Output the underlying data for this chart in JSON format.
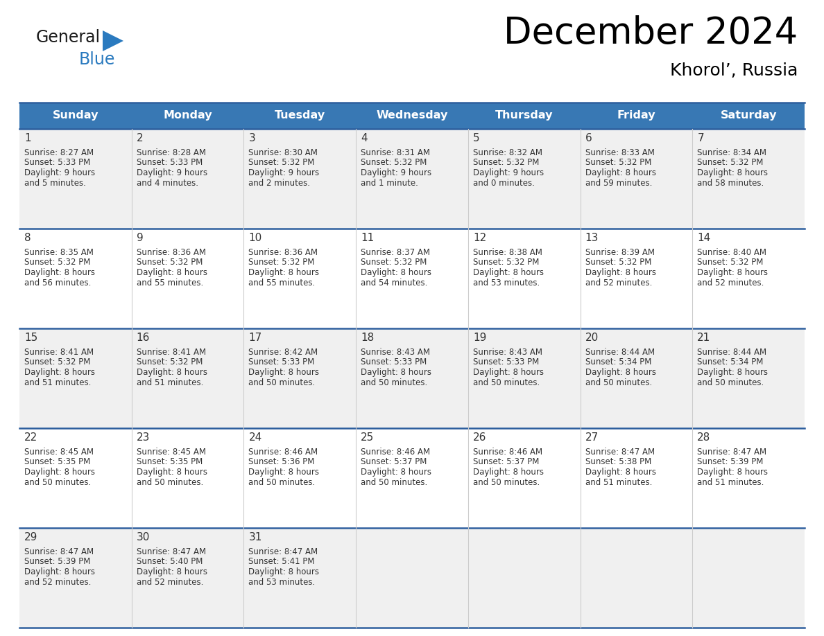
{
  "title": "December 2024",
  "subtitle": "Khorol’, Russia",
  "header_color": "#3878b4",
  "header_text_color": "#ffffff",
  "row_colors": [
    "#f0f0f0",
    "#ffffff",
    "#f0f0f0",
    "#ffffff",
    "#f0f0f0"
  ],
  "border_color": "#2e5f9e",
  "text_color": "#333333",
  "logo_general_color": "#1a1a1a",
  "logo_blue_color": "#2a7abf",
  "logo_triangle_color": "#2a7abf",
  "days_of_week": [
    "Sunday",
    "Monday",
    "Tuesday",
    "Wednesday",
    "Thursday",
    "Friday",
    "Saturday"
  ],
  "weeks": [
    [
      {
        "day": 1,
        "sunrise": "8:27 AM",
        "sunset": "5:33 PM",
        "daylight_line1": "9 hours",
        "daylight_line2": "and 5 minutes."
      },
      {
        "day": 2,
        "sunrise": "8:28 AM",
        "sunset": "5:33 PM",
        "daylight_line1": "9 hours",
        "daylight_line2": "and 4 minutes."
      },
      {
        "day": 3,
        "sunrise": "8:30 AM",
        "sunset": "5:32 PM",
        "daylight_line1": "9 hours",
        "daylight_line2": "and 2 minutes."
      },
      {
        "day": 4,
        "sunrise": "8:31 AM",
        "sunset": "5:32 PM",
        "daylight_line1": "9 hours",
        "daylight_line2": "and 1 minute."
      },
      {
        "day": 5,
        "sunrise": "8:32 AM",
        "sunset": "5:32 PM",
        "daylight_line1": "9 hours",
        "daylight_line2": "and 0 minutes."
      },
      {
        "day": 6,
        "sunrise": "8:33 AM",
        "sunset": "5:32 PM",
        "daylight_line1": "8 hours",
        "daylight_line2": "and 59 minutes."
      },
      {
        "day": 7,
        "sunrise": "8:34 AM",
        "sunset": "5:32 PM",
        "daylight_line1": "8 hours",
        "daylight_line2": "and 58 minutes."
      }
    ],
    [
      {
        "day": 8,
        "sunrise": "8:35 AM",
        "sunset": "5:32 PM",
        "daylight_line1": "8 hours",
        "daylight_line2": "and 56 minutes."
      },
      {
        "day": 9,
        "sunrise": "8:36 AM",
        "sunset": "5:32 PM",
        "daylight_line1": "8 hours",
        "daylight_line2": "and 55 minutes."
      },
      {
        "day": 10,
        "sunrise": "8:36 AM",
        "sunset": "5:32 PM",
        "daylight_line1": "8 hours",
        "daylight_line2": "and 55 minutes."
      },
      {
        "day": 11,
        "sunrise": "8:37 AM",
        "sunset": "5:32 PM",
        "daylight_line1": "8 hours",
        "daylight_line2": "and 54 minutes."
      },
      {
        "day": 12,
        "sunrise": "8:38 AM",
        "sunset": "5:32 PM",
        "daylight_line1": "8 hours",
        "daylight_line2": "and 53 minutes."
      },
      {
        "day": 13,
        "sunrise": "8:39 AM",
        "sunset": "5:32 PM",
        "daylight_line1": "8 hours",
        "daylight_line2": "and 52 minutes."
      },
      {
        "day": 14,
        "sunrise": "8:40 AM",
        "sunset": "5:32 PM",
        "daylight_line1": "8 hours",
        "daylight_line2": "and 52 minutes."
      }
    ],
    [
      {
        "day": 15,
        "sunrise": "8:41 AM",
        "sunset": "5:32 PM",
        "daylight_line1": "8 hours",
        "daylight_line2": "and 51 minutes."
      },
      {
        "day": 16,
        "sunrise": "8:41 AM",
        "sunset": "5:32 PM",
        "daylight_line1": "8 hours",
        "daylight_line2": "and 51 minutes."
      },
      {
        "day": 17,
        "sunrise": "8:42 AM",
        "sunset": "5:33 PM",
        "daylight_line1": "8 hours",
        "daylight_line2": "and 50 minutes."
      },
      {
        "day": 18,
        "sunrise": "8:43 AM",
        "sunset": "5:33 PM",
        "daylight_line1": "8 hours",
        "daylight_line2": "and 50 minutes."
      },
      {
        "day": 19,
        "sunrise": "8:43 AM",
        "sunset": "5:33 PM",
        "daylight_line1": "8 hours",
        "daylight_line2": "and 50 minutes."
      },
      {
        "day": 20,
        "sunrise": "8:44 AM",
        "sunset": "5:34 PM",
        "daylight_line1": "8 hours",
        "daylight_line2": "and 50 minutes."
      },
      {
        "day": 21,
        "sunrise": "8:44 AM",
        "sunset": "5:34 PM",
        "daylight_line1": "8 hours",
        "daylight_line2": "and 50 minutes."
      }
    ],
    [
      {
        "day": 22,
        "sunrise": "8:45 AM",
        "sunset": "5:35 PM",
        "daylight_line1": "8 hours",
        "daylight_line2": "and 50 minutes."
      },
      {
        "day": 23,
        "sunrise": "8:45 AM",
        "sunset": "5:35 PM",
        "daylight_line1": "8 hours",
        "daylight_line2": "and 50 minutes."
      },
      {
        "day": 24,
        "sunrise": "8:46 AM",
        "sunset": "5:36 PM",
        "daylight_line1": "8 hours",
        "daylight_line2": "and 50 minutes."
      },
      {
        "day": 25,
        "sunrise": "8:46 AM",
        "sunset": "5:37 PM",
        "daylight_line1": "8 hours",
        "daylight_line2": "and 50 minutes."
      },
      {
        "day": 26,
        "sunrise": "8:46 AM",
        "sunset": "5:37 PM",
        "daylight_line1": "8 hours",
        "daylight_line2": "and 50 minutes."
      },
      {
        "day": 27,
        "sunrise": "8:47 AM",
        "sunset": "5:38 PM",
        "daylight_line1": "8 hours",
        "daylight_line2": "and 51 minutes."
      },
      {
        "day": 28,
        "sunrise": "8:47 AM",
        "sunset": "5:39 PM",
        "daylight_line1": "8 hours",
        "daylight_line2": "and 51 minutes."
      }
    ],
    [
      {
        "day": 29,
        "sunrise": "8:47 AM",
        "sunset": "5:39 PM",
        "daylight_line1": "8 hours",
        "daylight_line2": "and 52 minutes."
      },
      {
        "day": 30,
        "sunrise": "8:47 AM",
        "sunset": "5:40 PM",
        "daylight_line1": "8 hours",
        "daylight_line2": "and 52 minutes."
      },
      {
        "day": 31,
        "sunrise": "8:47 AM",
        "sunset": "5:41 PM",
        "daylight_line1": "8 hours",
        "daylight_line2": "and 53 minutes."
      },
      null,
      null,
      null,
      null
    ]
  ]
}
